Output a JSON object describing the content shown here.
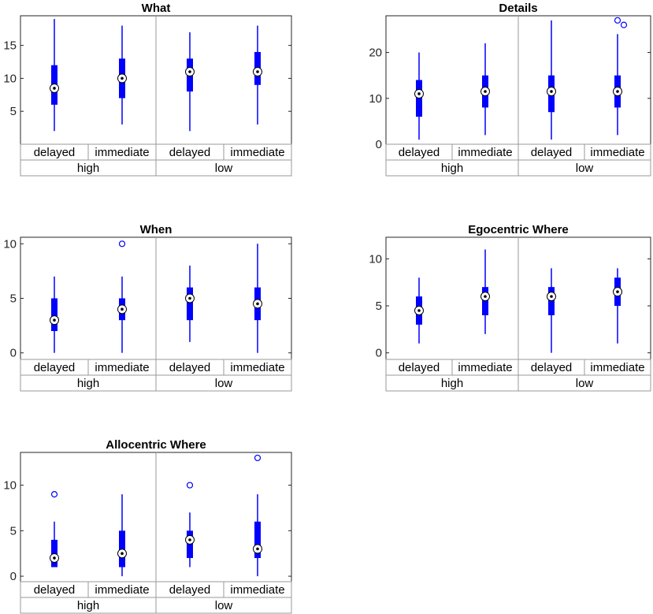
{
  "colors": {
    "box": "#0000ff",
    "axis": "#262626",
    "grid": "#9a9a9a"
  },
  "chart_data": [
    {
      "type": "box",
      "title": "What",
      "groups": [
        "high",
        "low"
      ],
      "subgroups": [
        "delayed",
        "immediate"
      ],
      "ylim": [
        0,
        19.5
      ],
      "yticks": [
        5,
        10,
        15
      ],
      "boxes": [
        {
          "group": "high",
          "subgroup": "delayed",
          "min": 2,
          "q1": 6,
          "median": 8.5,
          "q3": 12,
          "max": 19,
          "outliers": []
        },
        {
          "group": "high",
          "subgroup": "immediate",
          "min": 3,
          "q1": 7,
          "median": 10,
          "q3": 13,
          "max": 18,
          "outliers": []
        },
        {
          "group": "low",
          "subgroup": "delayed",
          "min": 2,
          "q1": 8,
          "median": 11,
          "q3": 13,
          "max": 17,
          "outliers": []
        },
        {
          "group": "low",
          "subgroup": "immediate",
          "min": 3,
          "q1": 9,
          "median": 11,
          "q3": 14,
          "max": 18,
          "outliers": []
        }
      ]
    },
    {
      "type": "box",
      "title": "Details",
      "groups": [
        "high",
        "low"
      ],
      "subgroups": [
        "delayed",
        "immediate"
      ],
      "ylim": [
        0,
        28
      ],
      "yticks": [
        0,
        10,
        20
      ],
      "boxes": [
        {
          "group": "high",
          "subgroup": "delayed",
          "min": 1,
          "q1": 6,
          "median": 11,
          "q3": 14,
          "max": 20,
          "outliers": []
        },
        {
          "group": "high",
          "subgroup": "immediate",
          "min": 2,
          "q1": 8,
          "median": 11.5,
          "q3": 15,
          "max": 22,
          "outliers": []
        },
        {
          "group": "low",
          "subgroup": "delayed",
          "min": 1,
          "q1": 7,
          "median": 11.5,
          "q3": 15,
          "max": 27,
          "outliers": []
        },
        {
          "group": "low",
          "subgroup": "immediate",
          "min": 2,
          "q1": 8,
          "median": 11.5,
          "q3": 15,
          "max": 24,
          "outliers": [
            27,
            26
          ]
        }
      ]
    },
    {
      "type": "box",
      "title": "When",
      "groups": [
        "high",
        "low"
      ],
      "subgroups": [
        "delayed",
        "immediate"
      ],
      "ylim": [
        -0.6,
        10.6
      ],
      "yticks": [
        0,
        5,
        10
      ],
      "boxes": [
        {
          "group": "high",
          "subgroup": "delayed",
          "min": 0,
          "q1": 2,
          "median": 3,
          "q3": 5,
          "max": 7,
          "outliers": []
        },
        {
          "group": "high",
          "subgroup": "immediate",
          "min": 0,
          "q1": 3,
          "median": 4,
          "q3": 5,
          "max": 7,
          "outliers": [
            10
          ]
        },
        {
          "group": "low",
          "subgroup": "delayed",
          "min": 1,
          "q1": 3,
          "median": 5,
          "q3": 6,
          "max": 8,
          "outliers": []
        },
        {
          "group": "low",
          "subgroup": "immediate",
          "min": 0,
          "q1": 3,
          "median": 4.5,
          "q3": 6,
          "max": 10,
          "outliers": []
        }
      ]
    },
    {
      "type": "box",
      "title": "Egocentric Where",
      "groups": [
        "high",
        "low"
      ],
      "subgroups": [
        "delayed",
        "immediate"
      ],
      "ylim": [
        -0.7,
        12.3
      ],
      "yticks": [
        0,
        5,
        10
      ],
      "boxes": [
        {
          "group": "high",
          "subgroup": "delayed",
          "min": 1,
          "q1": 3,
          "median": 4.5,
          "q3": 6,
          "max": 8,
          "outliers": []
        },
        {
          "group": "high",
          "subgroup": "immediate",
          "min": 2,
          "q1": 4,
          "median": 6,
          "q3": 7,
          "max": 11,
          "outliers": []
        },
        {
          "group": "low",
          "subgroup": "delayed",
          "min": 0,
          "q1": 4,
          "median": 6,
          "q3": 7,
          "max": 9,
          "outliers": []
        },
        {
          "group": "low",
          "subgroup": "immediate",
          "min": 1,
          "q1": 5,
          "median": 6.5,
          "q3": 8,
          "max": 9,
          "outliers": []
        }
      ]
    },
    {
      "type": "box",
      "title": "Allocentric Where",
      "groups": [
        "high",
        "low"
      ],
      "subgroups": [
        "delayed",
        "immediate"
      ],
      "ylim": [
        -0.6,
        13.6
      ],
      "yticks": [
        0,
        5,
        10
      ],
      "boxes": [
        {
          "group": "high",
          "subgroup": "delayed",
          "min": 1,
          "q1": 1,
          "median": 2,
          "q3": 4,
          "max": 6,
          "outliers": [
            9
          ]
        },
        {
          "group": "high",
          "subgroup": "immediate",
          "min": 0,
          "q1": 1,
          "median": 2.5,
          "q3": 5,
          "max": 9,
          "outliers": []
        },
        {
          "group": "low",
          "subgroup": "delayed",
          "min": 1,
          "q1": 2,
          "median": 4,
          "q3": 5,
          "max": 7,
          "outliers": [
            10
          ]
        },
        {
          "group": "low",
          "subgroup": "immediate",
          "min": 0,
          "q1": 2,
          "median": 3,
          "q3": 6,
          "max": 9,
          "outliers": [
            13
          ]
        }
      ]
    }
  ]
}
